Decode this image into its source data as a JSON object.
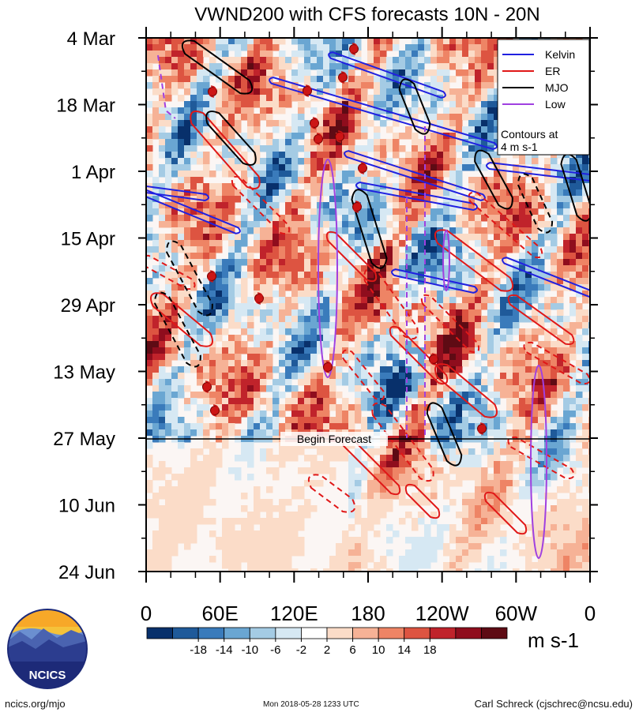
{
  "chart_data": {
    "type": "heatmap",
    "title": "VWND200 with CFS forecasts  10N - 20N",
    "x_ticks": [
      "0",
      "60E",
      "120E",
      "180",
      "120W",
      "60W",
      "0"
    ],
    "y_ticks": [
      "4 Mar",
      "18 Mar",
      "1 Apr",
      "15 Apr",
      "29 Apr",
      "13 May",
      "27 May",
      "10 Jun",
      "24 Jun"
    ],
    "forecast_label": "Begin Forecast",
    "forecast_start": "27 May",
    "colorbar": {
      "unit": "m s-1",
      "labels": [
        "-18",
        "-14",
        "-10",
        "-6",
        "-2",
        "2",
        "6",
        "10",
        "14",
        "18"
      ],
      "colors": [
        "#08306b",
        "#1f5a9a",
        "#3a7bbb",
        "#6aa6d2",
        "#a4cbe4",
        "#d6e8f3",
        "#ffffff",
        "#fbdcc8",
        "#f6b296",
        "#ee8465",
        "#dd5441",
        "#c0232b",
        "#8f0d1d",
        "#5e0b14"
      ]
    },
    "legend": {
      "entries": [
        {
          "name": "Kelvin",
          "color": "#2020e0"
        },
        {
          "name": "ER",
          "color": "#e01818"
        },
        {
          "name": "MJO",
          "color": "#000000"
        },
        {
          "name": "Low",
          "color": "#a040e0"
        }
      ],
      "note": "Contours at 4 m s-1",
      "placement": "top-right"
    }
  },
  "footer": {
    "left": "ncics.org/mjo",
    "middle": "Mon 2018-05-28 1233 UTC",
    "right": "Carl Schreck (cjschrec@ncsu.edu)",
    "logo_text": "NCICS"
  }
}
